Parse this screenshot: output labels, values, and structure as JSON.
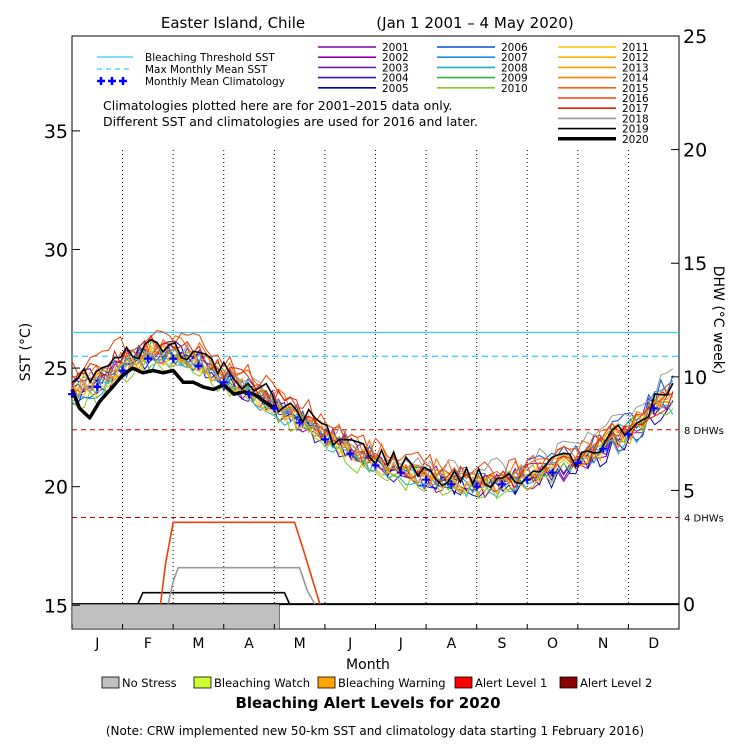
{
  "chart_data": {
    "type": "line",
    "title": "Easter Island, Chile",
    "subtitle": "(Jan 1 2001 – 4 May 2020)",
    "xlabel": "Month",
    "ylabel_left": "SST (°C)",
    "ylabel_right": "DHW (°C week)",
    "x_ticks": [
      "J",
      "F",
      "M",
      "A",
      "M",
      "J",
      "J",
      "A",
      "S",
      "O",
      "N",
      "D"
    ],
    "y_left_ticks": [
      "15",
      "20",
      "25",
      "30",
      "35"
    ],
    "y_right_ticks": [
      "0",
      "5",
      "10",
      "15",
      "20",
      "25"
    ],
    "ylim_left": [
      14,
      39
    ],
    "ylim_right": [
      0,
      25
    ],
    "grid": "dotted vertical lines at month boundaries",
    "legend_placement": "top",
    "legend_lines": [
      {
        "label": "Bleaching Threshold SST",
        "color": "#33ccff",
        "style": "solid"
      },
      {
        "label": "Max Monthly Mean SST",
        "color": "#33ccff",
        "style": "dashed"
      },
      {
        "label": "Monthly Mean Climatology",
        "color": "#0000ff",
        "style": "plus"
      }
    ],
    "years": [
      {
        "label": "2001",
        "color": "#8000a0"
      },
      {
        "label": "2002",
        "color": "#9a00b4"
      },
      {
        "label": "2003",
        "color": "#6a20b0"
      },
      {
        "label": "2004",
        "color": "#3a10b0"
      },
      {
        "label": "2005",
        "color": "#0000c0"
      },
      {
        "label": "2006",
        "color": "#0050d8"
      },
      {
        "label": "2007",
        "color": "#1890e8"
      },
      {
        "label": "2008",
        "color": "#18b0c8"
      },
      {
        "label": "2009",
        "color": "#28b840"
      },
      {
        "label": "2010",
        "color": "#88c820"
      },
      {
        "label": "2011",
        "color": "#ffc000"
      },
      {
        "label": "2012",
        "color": "#ffb000"
      },
      {
        "label": "2013",
        "color": "#ff9a00"
      },
      {
        "label": "2014",
        "color": "#ff8000"
      },
      {
        "label": "2015",
        "color": "#ff6000"
      },
      {
        "label": "2016",
        "color": "#f04000"
      },
      {
        "label": "2017",
        "color": "#e02000"
      },
      {
        "label": "2018",
        "color": "#999999"
      },
      {
        "label": "2019",
        "color": "#000000"
      },
      {
        "label": "2020",
        "color": "#000000"
      }
    ],
    "notes": [
      "Climatologies plotted here are for 2001–2015 data only.",
      "Different SST and climatologies are used for 2016 and later."
    ],
    "bleaching_threshold_sst": 26.5,
    "max_monthly_mean_sst": 25.5,
    "dhw_thresholds": [
      {
        "label": "8 DHWs",
        "sst": 22.4
      },
      {
        "label": "4 DHWs",
        "sst": 18.7
      }
    ],
    "climatology": [
      {
        "month": 0,
        "sst": 23.9
      },
      {
        "month": 0.5,
        "sst": 24.2
      },
      {
        "month": 1,
        "sst": 24.9
      },
      {
        "month": 1.5,
        "sst": 25.4
      },
      {
        "month": 2,
        "sst": 25.4
      },
      {
        "month": 2.5,
        "sst": 25.1
      },
      {
        "month": 3,
        "sst": 24.4
      },
      {
        "month": 3.5,
        "sst": 23.9
      },
      {
        "month": 4,
        "sst": 23.3
      },
      {
        "month": 4.5,
        "sst": 22.7
      },
      {
        "month": 5,
        "sst": 22.0
      },
      {
        "month": 5.5,
        "sst": 21.4
      },
      {
        "month": 6,
        "sst": 20.9
      },
      {
        "month": 6.5,
        "sst": 20.6
      },
      {
        "month": 7,
        "sst": 20.3
      },
      {
        "month": 7.5,
        "sst": 20.1
      },
      {
        "month": 8,
        "sst": 20.0
      },
      {
        "month": 8.5,
        "sst": 20.1
      },
      {
        "month": 9,
        "sst": 20.3
      },
      {
        "month": 9.5,
        "sst": 20.6
      },
      {
        "month": 10,
        "sst": 21.0
      },
      {
        "month": 10.5,
        "sst": 21.6
      },
      {
        "month": 11,
        "sst": 22.2
      },
      {
        "month": 11.5,
        "sst": 23.3
      }
    ],
    "series_2020_sst": [
      {
        "month": 0,
        "sst": 24.1
      },
      {
        "month": 0.15,
        "sst": 23.3
      },
      {
        "month": 0.35,
        "sst": 22.9
      },
      {
        "month": 0.55,
        "sst": 23.6
      },
      {
        "month": 0.8,
        "sst": 24.2
      },
      {
        "month": 1.0,
        "sst": 24.7
      },
      {
        "month": 1.2,
        "sst": 25.0
      },
      {
        "month": 1.4,
        "sst": 24.8
      },
      {
        "month": 1.6,
        "sst": 24.9
      },
      {
        "month": 1.8,
        "sst": 24.8
      },
      {
        "month": 2.0,
        "sst": 24.9
      },
      {
        "month": 2.2,
        "sst": 24.4
      },
      {
        "month": 2.4,
        "sst": 24.4
      },
      {
        "month": 2.6,
        "sst": 24.2
      },
      {
        "month": 2.8,
        "sst": 24.1
      },
      {
        "month": 3.0,
        "sst": 24.3
      },
      {
        "month": 3.2,
        "sst": 23.9
      },
      {
        "month": 3.4,
        "sst": 24.0
      },
      {
        "month": 3.6,
        "sst": 23.9
      },
      {
        "month": 3.8,
        "sst": 23.6
      },
      {
        "month": 4.0,
        "sst": 23.3
      }
    ],
    "dhw_series": [
      {
        "year": "2020",
        "color": "#000000",
        "points": [
          [
            0,
            0
          ],
          [
            4.1,
            0
          ]
        ]
      },
      {
        "year": "2019",
        "color": "#000000",
        "points": [
          [
            1.3,
            0
          ],
          [
            1.4,
            0.5
          ],
          [
            4.2,
            0.5
          ],
          [
            4.3,
            0
          ]
        ]
      },
      {
        "year": "2018",
        "color": "#999999",
        "points": [
          [
            1.9,
            0
          ],
          [
            2.0,
            1.0
          ],
          [
            2.1,
            1.6
          ],
          [
            4.5,
            1.6
          ],
          [
            4.65,
            0.6
          ],
          [
            4.8,
            0
          ]
        ]
      },
      {
        "year": "2016",
        "color": "#f04000",
        "points": [
          [
            1.75,
            0
          ],
          [
            1.85,
            1.8
          ],
          [
            2.0,
            3.6
          ],
          [
            4.4,
            3.6
          ],
          [
            4.6,
            2.2
          ],
          [
            4.9,
            0
          ]
        ]
      }
    ],
    "alert_legend": [
      {
        "label": "No Stress",
        "color": "#c0c0c0"
      },
      {
        "label": "Bleaching Watch",
        "color": "#ccff33"
      },
      {
        "label": "Bleaching Warning",
        "color": "#ffa500"
      },
      {
        "label": "Alert Level 1",
        "color": "#ff0000"
      },
      {
        "label": "Alert Level 2",
        "color": "#8b0000"
      }
    ],
    "alert_title": "Bleaching Alert Levels for 2020",
    "stress_bar_2020": {
      "start_month": 0,
      "end_month": 4.1,
      "level": "No Stress"
    },
    "footnote": "(Note: CRW implemented new 50-km SST and climatology data starting 1 February 2016)"
  }
}
